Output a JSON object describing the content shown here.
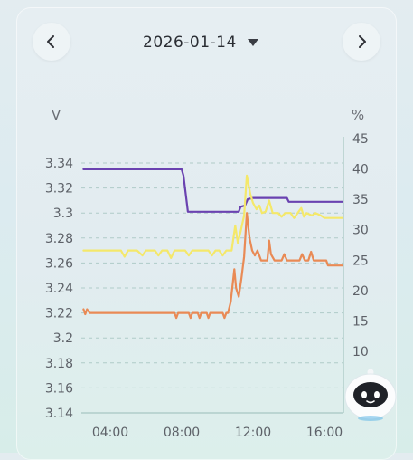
{
  "header": {
    "date": "2026-01-14"
  },
  "icons": {
    "prev": "chevron-left-icon",
    "next": "chevron-right-icon",
    "dropdown": "caret-down-icon",
    "assistant": "robot-assistant-icon"
  },
  "colors": {
    "purple": "#6a42b0",
    "yellow": "#f4e86a",
    "orange": "#e98a55",
    "grid": "#a7c6c2",
    "axis_text": "#5d6168"
  },
  "chart_data": {
    "type": "line",
    "left_axis": {
      "unit": "V",
      "ticks": [
        "3.34",
        "3.32",
        "3.3",
        "3.28",
        "3.26",
        "3.24",
        "3.22",
        "3.2",
        "3.18",
        "3.16",
        "3.14"
      ],
      "range": [
        3.14,
        3.34
      ]
    },
    "right_axis": {
      "unit": "%",
      "ticks": [
        "45",
        "40",
        "35",
        "30",
        "25",
        "20",
        "15",
        "10"
      ],
      "range": [
        5,
        45
      ]
    },
    "x_axis": {
      "ticks": [
        "04:00",
        "08:00",
        "12:00",
        "16:00"
      ],
      "tick_hours": [
        4,
        8,
        12,
        16
      ],
      "range": [
        2.5,
        17.0
      ]
    },
    "grid": true,
    "legend": "none",
    "series": [
      {
        "axis": "left",
        "color": "#6a42b0",
        "points": [
          [
            2.5,
            3.335
          ],
          [
            8.0,
            3.335
          ],
          [
            8.1,
            3.33
          ],
          [
            8.35,
            3.301
          ],
          [
            11.2,
            3.301
          ],
          [
            11.3,
            3.305
          ],
          [
            11.55,
            3.306
          ],
          [
            11.7,
            3.311
          ],
          [
            12.0,
            3.312
          ],
          [
            13.9,
            3.312
          ],
          [
            14.0,
            3.309
          ],
          [
            17.0,
            3.309
          ]
        ]
      },
      {
        "axis": "left",
        "color": "#f4e86a",
        "points": [
          [
            2.5,
            3.27
          ],
          [
            4.6,
            3.27
          ],
          [
            4.8,
            3.265
          ],
          [
            5.0,
            3.27
          ],
          [
            5.5,
            3.27
          ],
          [
            5.8,
            3.266
          ],
          [
            6.0,
            3.27
          ],
          [
            6.5,
            3.27
          ],
          [
            6.7,
            3.266
          ],
          [
            6.9,
            3.27
          ],
          [
            7.2,
            3.27
          ],
          [
            7.4,
            3.264
          ],
          [
            7.6,
            3.27
          ],
          [
            8.2,
            3.27
          ],
          [
            8.4,
            3.266
          ],
          [
            8.6,
            3.27
          ],
          [
            9.5,
            3.27
          ],
          [
            9.7,
            3.266
          ],
          [
            9.9,
            3.27
          ],
          [
            10.1,
            3.27
          ],
          [
            10.3,
            3.266
          ],
          [
            10.5,
            3.27
          ],
          [
            10.8,
            3.27
          ],
          [
            11.0,
            3.29
          ],
          [
            11.15,
            3.276
          ],
          [
            11.3,
            3.285
          ],
          [
            11.5,
            3.298
          ],
          [
            11.65,
            3.33
          ],
          [
            11.85,
            3.315
          ],
          [
            12.0,
            3.308
          ],
          [
            12.2,
            3.303
          ],
          [
            12.35,
            3.306
          ],
          [
            12.5,
            3.3
          ],
          [
            12.7,
            3.301
          ],
          [
            12.9,
            3.31
          ],
          [
            13.1,
            3.3
          ],
          [
            13.4,
            3.3
          ],
          [
            13.6,
            3.297
          ],
          [
            13.8,
            3.3
          ],
          [
            14.1,
            3.3
          ],
          [
            14.3,
            3.296
          ],
          [
            14.5,
            3.3
          ],
          [
            14.7,
            3.304
          ],
          [
            14.85,
            3.297
          ],
          [
            15.0,
            3.3
          ],
          [
            15.3,
            3.298
          ],
          [
            15.5,
            3.3
          ],
          [
            15.8,
            3.298
          ],
          [
            16.0,
            3.296
          ],
          [
            17.0,
            3.296
          ]
        ]
      },
      {
        "axis": "left",
        "color": "#e98a55",
        "points": [
          [
            2.5,
            3.223
          ],
          [
            2.6,
            3.219
          ],
          [
            2.7,
            3.223
          ],
          [
            2.85,
            3.22
          ],
          [
            7.6,
            3.22
          ],
          [
            7.7,
            3.216
          ],
          [
            7.8,
            3.22
          ],
          [
            8.4,
            3.22
          ],
          [
            8.5,
            3.216
          ],
          [
            8.6,
            3.22
          ],
          [
            8.9,
            3.22
          ],
          [
            9.0,
            3.216
          ],
          [
            9.1,
            3.22
          ],
          [
            9.4,
            3.22
          ],
          [
            9.5,
            3.216
          ],
          [
            9.6,
            3.22
          ],
          [
            10.3,
            3.22
          ],
          [
            10.4,
            3.216
          ],
          [
            10.5,
            3.22
          ],
          [
            10.6,
            3.22
          ],
          [
            10.75,
            3.229
          ],
          [
            10.95,
            3.255
          ],
          [
            11.05,
            3.24
          ],
          [
            11.2,
            3.233
          ],
          [
            11.35,
            3.248
          ],
          [
            11.5,
            3.265
          ],
          [
            11.65,
            3.3
          ],
          [
            11.8,
            3.28
          ],
          [
            11.95,
            3.27
          ],
          [
            12.1,
            3.266
          ],
          [
            12.25,
            3.27
          ],
          [
            12.45,
            3.262
          ],
          [
            12.8,
            3.262
          ],
          [
            12.9,
            3.278
          ],
          [
            13.0,
            3.267
          ],
          [
            13.2,
            3.262
          ],
          [
            13.6,
            3.262
          ],
          [
            13.75,
            3.267
          ],
          [
            13.9,
            3.262
          ],
          [
            14.6,
            3.262
          ],
          [
            14.75,
            3.267
          ],
          [
            14.9,
            3.262
          ],
          [
            15.1,
            3.262
          ],
          [
            15.25,
            3.269
          ],
          [
            15.4,
            3.262
          ],
          [
            16.1,
            3.262
          ],
          [
            16.2,
            3.258
          ],
          [
            17.0,
            3.258
          ]
        ]
      }
    ]
  }
}
